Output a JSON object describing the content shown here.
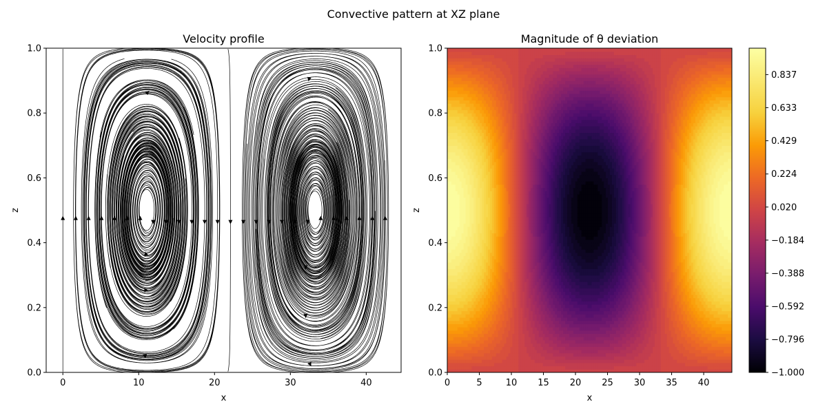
{
  "figure": {
    "title": "Convective pattern at XZ plane"
  },
  "chart_data": [
    {
      "type": "streamplot",
      "title": "Velocity profile",
      "xlabel": "x",
      "ylabel": "z",
      "xlim": [
        -2.2,
        44.6
      ],
      "ylim": [
        0,
        1
      ],
      "xticks": [
        0,
        10,
        20,
        30,
        40
      ],
      "yticks": [
        0.0,
        0.2,
        0.4,
        0.6,
        0.8,
        1.0
      ],
      "grid": false,
      "line_color": "#000000"
    },
    {
      "type": "heatmap",
      "title": "Magnitude of θ deviation",
      "xlabel": "x",
      "ylabel": "z",
      "xlim": [
        0,
        44.4
      ],
      "ylim": [
        0,
        1
      ],
      "xticks": [
        0,
        5,
        10,
        15,
        20,
        25,
        30,
        35,
        40
      ],
      "yticks": [
        0.0,
        0.2,
        0.4,
        0.6,
        0.8,
        1.0
      ],
      "colormap": "inferno",
      "value_range": [
        -1.0,
        1.0
      ],
      "colorbar_ticks": [
        "−1.000",
        "−0.796",
        "−0.592",
        "−0.388",
        "−0.184",
        "0.020",
        "0.224",
        "0.429",
        "0.633",
        "0.837"
      ],
      "colorbar_tick_values": [
        -1.0,
        -0.796,
        -0.592,
        -0.388,
        -0.184,
        0.02,
        0.224,
        0.429,
        0.633,
        0.837
      ]
    }
  ]
}
